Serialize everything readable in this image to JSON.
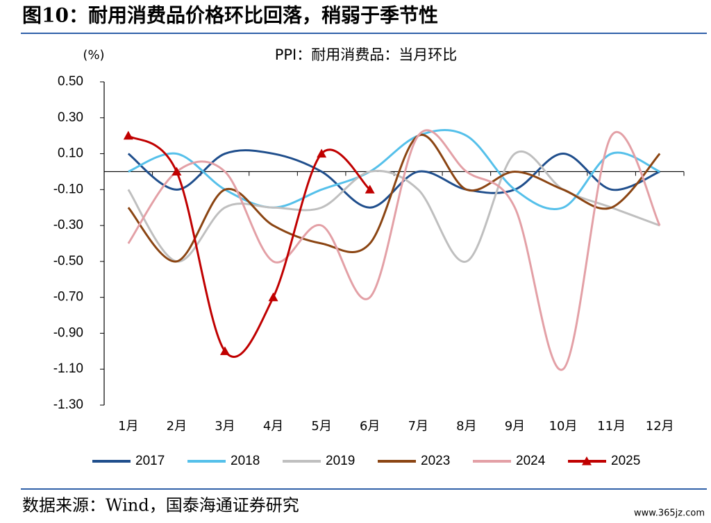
{
  "header": {
    "title": "图10：耐用消费品价格环比回落，稍弱于季节性"
  },
  "chart_data": {
    "type": "line",
    "title": "PPI：耐用消费品：当月环比",
    "y_unit": "(%)",
    "categories": [
      "1月",
      "2月",
      "3月",
      "4月",
      "5月",
      "6月",
      "7月",
      "8月",
      "9月",
      "10月",
      "11月",
      "12月"
    ],
    "ylim": [
      -1.3,
      0.5
    ],
    "yticks": [
      {
        "value": 0.5,
        "label": "0.50"
      },
      {
        "value": 0.3,
        "label": "0.30"
      },
      {
        "value": 0.1,
        "label": "0.10"
      },
      {
        "value": -0.1,
        "label": "-0.10"
      },
      {
        "value": -0.3,
        "label": "-0.30"
      },
      {
        "value": -0.5,
        "label": "-0.50"
      },
      {
        "value": -0.7,
        "label": "-0.70"
      },
      {
        "value": -0.9,
        "label": "-0.90"
      },
      {
        "value": -1.1,
        "label": "-1.10"
      },
      {
        "value": -1.3,
        "label": "-1.30"
      }
    ],
    "smooth": true,
    "legend": "bottom",
    "series": [
      {
        "name": "2017",
        "color": "#1f4e8c",
        "values": [
          0.1,
          -0.1,
          0.1,
          0.1,
          0.0,
          -0.2,
          0.0,
          -0.1,
          -0.1,
          0.1,
          -0.1,
          0.0
        ]
      },
      {
        "name": "2018",
        "color": "#55c0ea",
        "values": [
          0.0,
          0.1,
          -0.1,
          -0.2,
          -0.1,
          0.0,
          0.2,
          0.2,
          -0.1,
          -0.2,
          0.1,
          0.0
        ]
      },
      {
        "name": "2019",
        "color": "#bfbfbf",
        "values": [
          -0.1,
          -0.5,
          -0.2,
          -0.2,
          -0.2,
          0.0,
          -0.1,
          -0.5,
          0.1,
          -0.1,
          -0.2,
          -0.3
        ]
      },
      {
        "name": "2023",
        "color": "#8b4513",
        "values": [
          -0.2,
          -0.5,
          -0.1,
          -0.3,
          -0.4,
          -0.4,
          0.2,
          -0.1,
          0.0,
          -0.1,
          -0.2,
          0.1
        ]
      },
      {
        "name": "2024",
        "color": "#e3a0a6",
        "values": [
          -0.4,
          0.0,
          0.0,
          -0.5,
          -0.3,
          -0.7,
          0.2,
          0.0,
          -0.2,
          -1.1,
          0.2,
          -0.3
        ]
      },
      {
        "name": "2025",
        "color": "#c00000",
        "marker": "triangle",
        "values": [
          0.2,
          0.0,
          -1.0,
          -0.7,
          0.1,
          -0.1,
          null,
          null,
          null,
          null,
          null,
          null
        ]
      }
    ]
  },
  "footer": {
    "source": "数据来源：Wind，国泰海通证券研究",
    "watermark": "www.365jz.com"
  }
}
